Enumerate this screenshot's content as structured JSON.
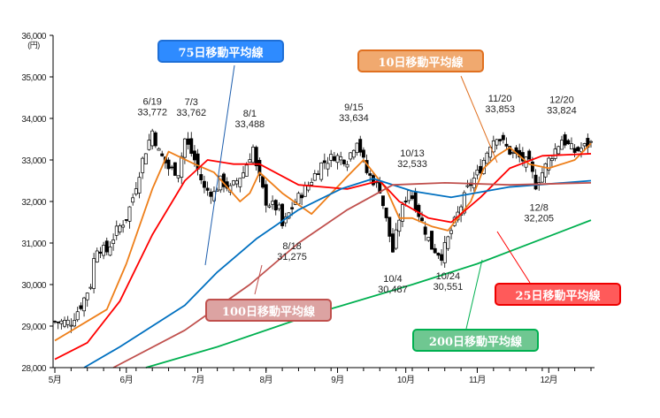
{
  "chart_data": {
    "type": "candlestick",
    "title": "",
    "y_unit": "(円)",
    "ylim": [
      28000,
      36000
    ],
    "y_ticks": [
      "36,000",
      "35,000",
      "34,000",
      "33,000",
      "32,000",
      "31,000",
      "30,000",
      "29,000",
      "28,000"
    ],
    "y_tick_values": [
      36000,
      35000,
      34000,
      33000,
      32000,
      31000,
      30000,
      29000,
      28000
    ],
    "x_tick_labels": [
      "5月",
      "6月",
      "7月",
      "8月",
      "9月",
      "10月",
      "11月",
      "12月"
    ],
    "x_tick_days": [
      0,
      22,
      44,
      65,
      87,
      108,
      130,
      152
    ],
    "total_days": 165,
    "price_path": [
      [
        0,
        29100
      ],
      [
        5,
        29100
      ],
      [
        8,
        29500
      ],
      [
        11,
        30000
      ],
      [
        12,
        30600
      ],
      [
        13,
        30900
      ],
      [
        16,
        30800
      ],
      [
        19,
        31300
      ],
      [
        22,
        31600
      ],
      [
        24,
        32100
      ],
      [
        27,
        33000
      ],
      [
        30,
        33700
      ],
      [
        32,
        33200
      ],
      [
        35,
        32800
      ],
      [
        38,
        32700
      ],
      [
        40,
        33500
      ],
      [
        43,
        33000
      ],
      [
        46,
        32300
      ],
      [
        49,
        32200
      ],
      [
        51,
        32500
      ],
      [
        54,
        32300
      ],
      [
        58,
        32700
      ],
      [
        61,
        33300
      ],
      [
        62,
        32800
      ],
      [
        65,
        32000
      ],
      [
        69,
        31800
      ],
      [
        70,
        31400
      ],
      [
        74,
        32000
      ],
      [
        78,
        32400
      ],
      [
        82,
        32900
      ],
      [
        86,
        33100
      ],
      [
        90,
        33000
      ],
      [
        93,
        33500
      ],
      [
        96,
        32700
      ],
      [
        100,
        32300
      ],
      [
        104,
        30800
      ],
      [
        106,
        31600
      ],
      [
        109,
        32300
      ],
      [
        112,
        31700
      ],
      [
        116,
        30900
      ],
      [
        119,
        30700
      ],
      [
        123,
        31500
      ],
      [
        127,
        32300
      ],
      [
        131,
        32800
      ],
      [
        134,
        33400
      ],
      [
        136,
        33600
      ],
      [
        140,
        33200
      ],
      [
        146,
        32900
      ],
      [
        148,
        32400
      ],
      [
        152,
        33000
      ],
      [
        156,
        33500
      ],
      [
        160,
        33200
      ],
      [
        165,
        33400
      ]
    ],
    "series": [
      {
        "name": "10日移動平均線",
        "color": "#ee7f1a",
        "points": [
          [
            0,
            28650
          ],
          [
            16,
            29400
          ],
          [
            22,
            30500
          ],
          [
            30,
            32300
          ],
          [
            35,
            33200
          ],
          [
            43,
            32900
          ],
          [
            49,
            32700
          ],
          [
            57,
            32000
          ],
          [
            60,
            32200
          ],
          [
            63,
            32700
          ],
          [
            70,
            32200
          ],
          [
            79,
            31700
          ],
          [
            90,
            32600
          ],
          [
            95,
            33000
          ],
          [
            102,
            32300
          ],
          [
            106,
            31600
          ],
          [
            110,
            31600
          ],
          [
            116,
            31400
          ],
          [
            121,
            31300
          ],
          [
            128,
            32000
          ],
          [
            132,
            32800
          ],
          [
            136,
            33100
          ],
          [
            140,
            33300
          ],
          [
            146,
            32900
          ],
          [
            152,
            32800
          ],
          [
            160,
            33000
          ],
          [
            165,
            33400
          ]
        ]
      },
      {
        "name": "25日移動平均線",
        "color": "#ff0000",
        "points": [
          [
            0,
            28200
          ],
          [
            10,
            28600
          ],
          [
            20,
            29600
          ],
          [
            30,
            31200
          ],
          [
            40,
            32500
          ],
          [
            47,
            33000
          ],
          [
            55,
            32900
          ],
          [
            63,
            32900
          ],
          [
            75,
            32400
          ],
          [
            90,
            32300
          ],
          [
            100,
            32500
          ],
          [
            106,
            32000
          ],
          [
            115,
            31600
          ],
          [
            122,
            31500
          ],
          [
            131,
            32100
          ],
          [
            140,
            32800
          ],
          [
            150,
            33100
          ],
          [
            165,
            33150
          ]
        ]
      },
      {
        "name": "75日移動平均線",
        "color": "#0070c0",
        "points": [
          [
            9,
            28000
          ],
          [
            20,
            28500
          ],
          [
            40,
            29500
          ],
          [
            50,
            30300
          ],
          [
            62,
            31100
          ],
          [
            75,
            31800
          ],
          [
            88,
            32300
          ],
          [
            98,
            32550
          ],
          [
            110,
            32250
          ],
          [
            122,
            32100
          ],
          [
            140,
            32350
          ],
          [
            165,
            32500
          ]
        ]
      },
      {
        "name": "100日移動平均線",
        "color": "#c0504d",
        "points": [
          [
            18,
            28000
          ],
          [
            40,
            28900
          ],
          [
            60,
            30000
          ],
          [
            75,
            31000
          ],
          [
            90,
            31800
          ],
          [
            104,
            32400
          ],
          [
            120,
            32450
          ],
          [
            140,
            32400
          ],
          [
            165,
            32450
          ]
        ]
      },
      {
        "name": "200日移動平均線",
        "color": "#00b050",
        "points": [
          [
            28,
            28000
          ],
          [
            50,
            28500
          ],
          [
            80,
            29300
          ],
          [
            110,
            30000
          ],
          [
            130,
            30500
          ],
          [
            150,
            31100
          ],
          [
            165,
            31550
          ]
        ]
      }
    ],
    "annotations": [
      {
        "date": "6/19",
        "value": "33,772",
        "day": 30,
        "price": 33772,
        "pos": "above"
      },
      {
        "date": "7/3",
        "value": "33,762",
        "day": 42,
        "price": 33762,
        "pos": "above"
      },
      {
        "date": "8/1",
        "value": "33,488",
        "day": 60,
        "price": 33488,
        "pos": "above"
      },
      {
        "date": "8/18",
        "value": "31,275",
        "day": 73,
        "price": 31275,
        "pos": "below"
      },
      {
        "date": "9/15",
        "value": "33,634",
        "day": 92,
        "price": 33634,
        "pos": "above"
      },
      {
        "date": "10/4",
        "value": "30,487",
        "day": 104,
        "price": 30487,
        "pos": "below"
      },
      {
        "date": "10/13",
        "value": "32,533",
        "day": 110,
        "price": 32533,
        "pos": "above"
      },
      {
        "date": "10/24",
        "value": "30,551",
        "day": 121,
        "price": 30551,
        "pos": "below"
      },
      {
        "date": "11/20",
        "value": "33,853",
        "day": 137,
        "price": 33853,
        "pos": "above"
      },
      {
        "date": "12/8",
        "value": "32,205",
        "day": 149,
        "price": 32205,
        "pos": "below"
      },
      {
        "date": "12/20",
        "value": "33,824",
        "day": 156,
        "price": 33824,
        "pos": "above"
      }
    ]
  },
  "legend_boxes": {
    "ma75": {
      "label": "75日移動平均線",
      "fill": "#2e8bff",
      "border": "#1f6fd6"
    },
    "ma10": {
      "label": "10日移動平均線",
      "fill": "#f0a96f",
      "border": "#e07020"
    },
    "ma100": {
      "label": "100日移動平均線",
      "fill": "#dca3a2",
      "border": "#c0504d"
    },
    "ma25": {
      "label": "25日移動平均線",
      "fill": "#ff5a5a",
      "border": "#ee0000"
    },
    "ma200": {
      "label": "200日移動平均線",
      "fill": "#6fc791",
      "border": "#00b050"
    }
  }
}
